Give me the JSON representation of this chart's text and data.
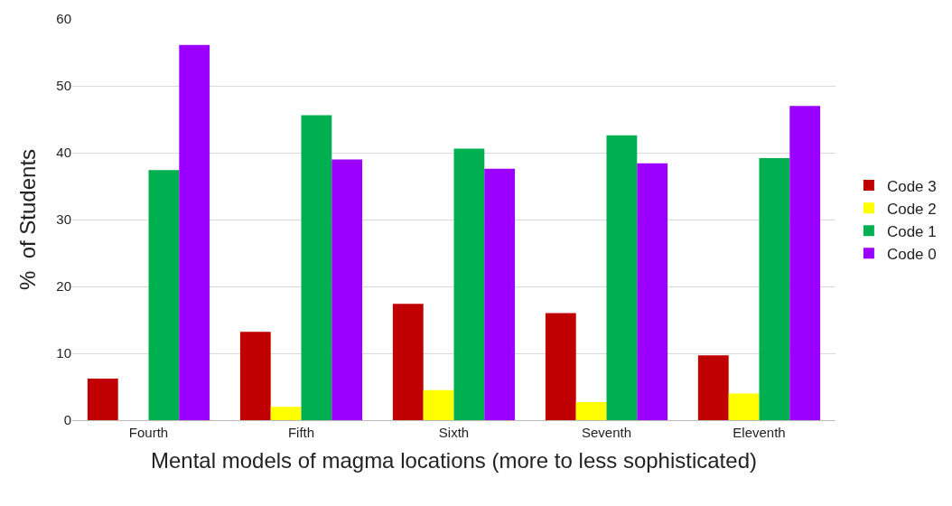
{
  "chart_data": {
    "type": "bar",
    "xlabel": "Mental models of magma locations (more to less sophisticated)",
    "ylabel": "%  of Students",
    "categories": [
      "Fourth",
      "Fifth",
      "Sixth",
      "Seventh",
      "Eleventh"
    ],
    "series": [
      {
        "name": "Code 3",
        "color": "#c00000",
        "values": [
          6.2,
          13.2,
          17.4,
          16.0,
          9.7
        ]
      },
      {
        "name": "Code 2",
        "color": "#ffff00",
        "values": [
          0,
          2.0,
          4.5,
          2.7,
          4.0
        ]
      },
      {
        "name": "Code 1",
        "color": "#00b050",
        "values": [
          37.4,
          45.6,
          40.6,
          42.6,
          39.2
        ]
      },
      {
        "name": "Code 0",
        "color": "#9b00ff",
        "values": [
          56.1,
          39.0,
          37.6,
          38.4,
          47.0
        ]
      }
    ],
    "ylim": [
      0,
      60
    ],
    "yticks": [
      0,
      10,
      20,
      30,
      40,
      50,
      60
    ],
    "grid": "y",
    "legend": "right"
  }
}
